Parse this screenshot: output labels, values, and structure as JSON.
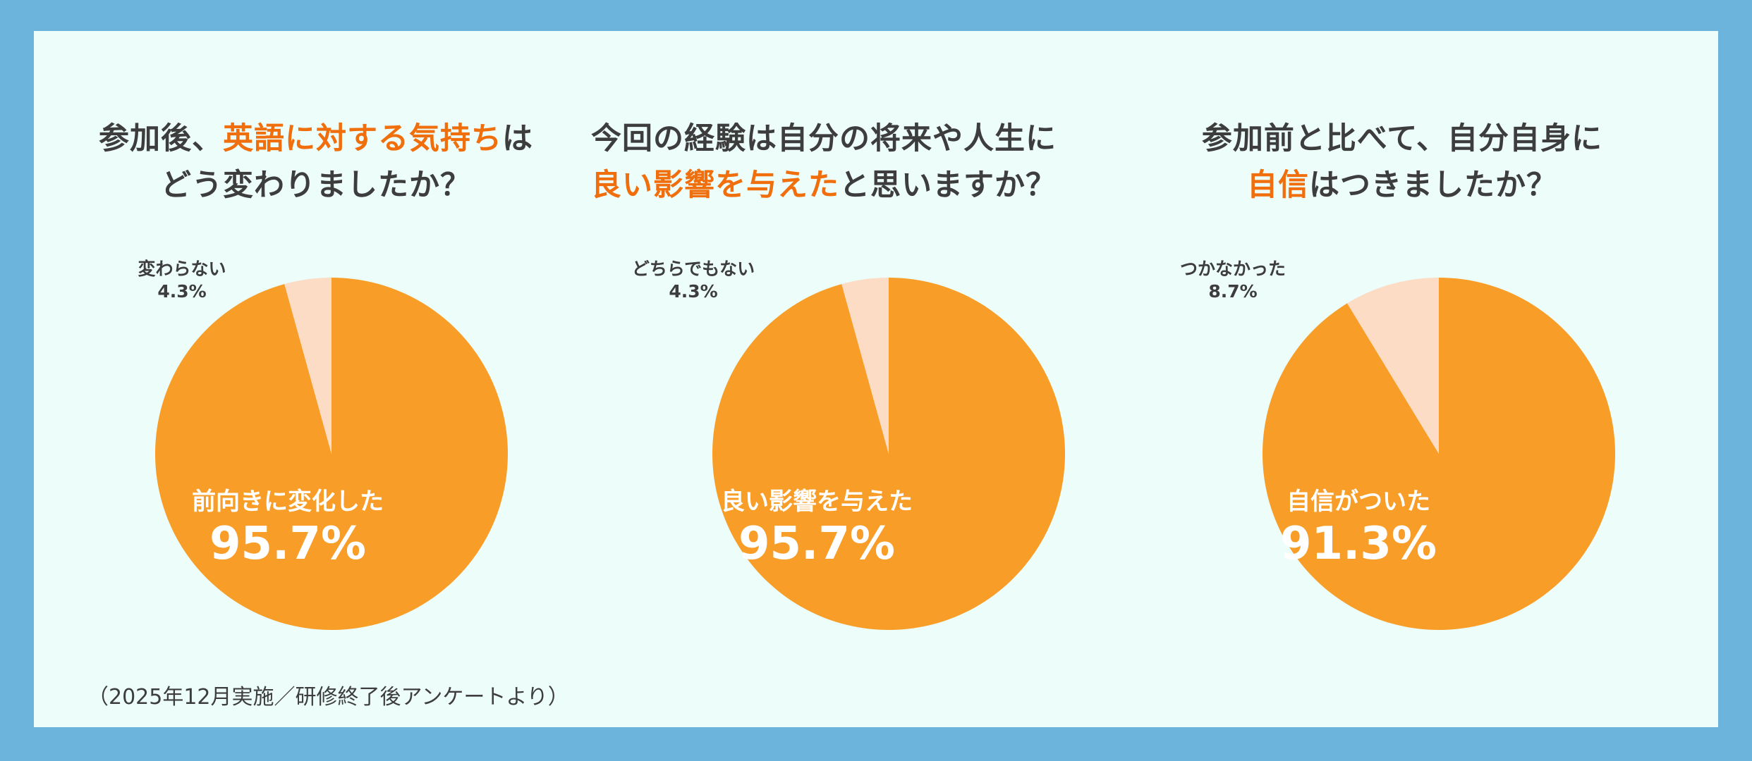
{
  "colors": {
    "frame": "#6cb4db",
    "panel": "#ecfdfa",
    "major": "#f89e28",
    "minor": "#fcdcc4",
    "highlight": "#f06e0c",
    "text": "#3d3d3d"
  },
  "chart_data": [
    {
      "type": "pie",
      "title_lines": [
        [
          {
            "text": "参加後、",
            "hl": false
          },
          {
            "text": "英語に対する気持ち",
            "hl": true
          },
          {
            "text": "は",
            "hl": false
          }
        ],
        [
          {
            "text": "どう変わりましたか？",
            "hl": false
          }
        ]
      ],
      "slices": [
        {
          "label": "前向きに変化した",
          "value": 95.7,
          "value_text": "95.7%"
        },
        {
          "label": "変わらない",
          "value": 4.3,
          "value_text": "4.3%"
        }
      ]
    },
    {
      "type": "pie",
      "title_lines": [
        [
          {
            "text": "今回の経験は自分の将来や人生に",
            "hl": false
          }
        ],
        [
          {
            "text": "良い影響を与えた",
            "hl": true
          },
          {
            "text": "と思いますか？",
            "hl": false
          }
        ]
      ],
      "slices": [
        {
          "label": "良い影響を与えた",
          "value": 95.7,
          "value_text": "95.7%"
        },
        {
          "label": "どちらでもない",
          "value": 4.3,
          "value_text": "4.3%"
        }
      ]
    },
    {
      "type": "pie",
      "title_lines": [
        [
          {
            "text": "参加前と比べて、自分自身に",
            "hl": false
          }
        ],
        [
          {
            "text": "自信",
            "hl": true
          },
          {
            "text": "はつきましたか？",
            "hl": false
          }
        ]
      ],
      "slices": [
        {
          "label": "自信がついた",
          "value": 91.3,
          "value_text": "91.3%"
        },
        {
          "label": "つかなかった",
          "value": 8.7,
          "value_text": "8.7%"
        }
      ]
    }
  ],
  "footnote": "（2025年12月実施／研修終了後アンケートより）"
}
